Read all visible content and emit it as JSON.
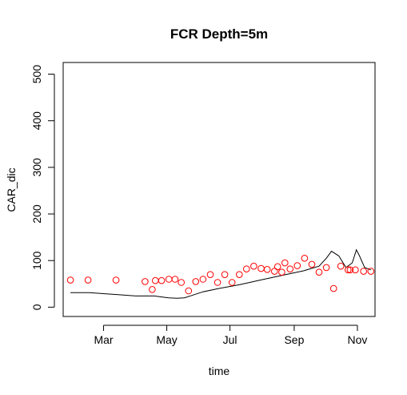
{
  "chart_data": {
    "type": "scatter",
    "title": "FCR Depth=5m",
    "xlabel": "time",
    "ylabel": "CAR_dic",
    "xlim": [
      "2019-01-21",
      "2019-11-18"
    ],
    "ylim": [
      -20,
      525
    ],
    "yticks": [
      0,
      100,
      200,
      300,
      400,
      500
    ],
    "xticks": [
      {
        "date": "2019-03-01",
        "label": "Mar"
      },
      {
        "date": "2019-05-01",
        "label": "May"
      },
      {
        "date": "2019-07-01",
        "label": "Jul"
      },
      {
        "date": "2019-09-01",
        "label": "Sep"
      },
      {
        "date": "2019-11-01",
        "label": "Nov"
      }
    ],
    "grid": false,
    "colors": {
      "points": "#ff0000",
      "line": "#000000"
    },
    "series": [
      {
        "kind": "points",
        "x": [
          "2019-01-28",
          "2019-02-14",
          "2019-03-13",
          "2019-04-10",
          "2019-04-17",
          "2019-04-20",
          "2019-04-26",
          "2019-05-03",
          "2019-05-09",
          "2019-05-15",
          "2019-05-22",
          "2019-05-29",
          "2019-06-05",
          "2019-06-12",
          "2019-06-19",
          "2019-06-26",
          "2019-07-03",
          "2019-07-10",
          "2019-07-17",
          "2019-07-24",
          "2019-07-31",
          "2019-08-06",
          "2019-08-13",
          "2019-08-16",
          "2019-08-20",
          "2019-08-23",
          "2019-08-28",
          "2019-09-04",
          "2019-09-11",
          "2019-09-18",
          "2019-09-25",
          "2019-10-02",
          "2019-10-09",
          "2019-10-16",
          "2019-10-23",
          "2019-10-25",
          "2019-10-30",
          "2019-11-07",
          "2019-11-14"
        ],
        "y": [
          58,
          58,
          58,
          55,
          38,
          57,
          57,
          60,
          60,
          53,
          35,
          55,
          60,
          70,
          53,
          70,
          53,
          70,
          82,
          88,
          83,
          81,
          77,
          87,
          75,
          95,
          82,
          89,
          105,
          92,
          75,
          85,
          40,
          88,
          80,
          80,
          80,
          77,
          77
        ]
      },
      {
        "kind": "line",
        "x": [
          "2019-01-28",
          "2019-02-15",
          "2019-03-15",
          "2019-04-01",
          "2019-04-19",
          "2019-04-26",
          "2019-05-03",
          "2019-05-11",
          "2019-05-18",
          "2019-05-25",
          "2019-06-05",
          "2019-06-20",
          "2019-07-10",
          "2019-07-30",
          "2019-08-20",
          "2019-09-10",
          "2019-09-25",
          "2019-10-02",
          "2019-10-07",
          "2019-10-14",
          "2019-10-21",
          "2019-10-27",
          "2019-10-31",
          "2019-11-03",
          "2019-11-08",
          "2019-11-14"
        ],
        "y": [
          31,
          31,
          27,
          24,
          24,
          22,
          20,
          19,
          20,
          25,
          33,
          40,
          48,
          58,
          68,
          78,
          88,
          105,
          120,
          110,
          85,
          95,
          123,
          110,
          85,
          80
        ]
      }
    ]
  }
}
